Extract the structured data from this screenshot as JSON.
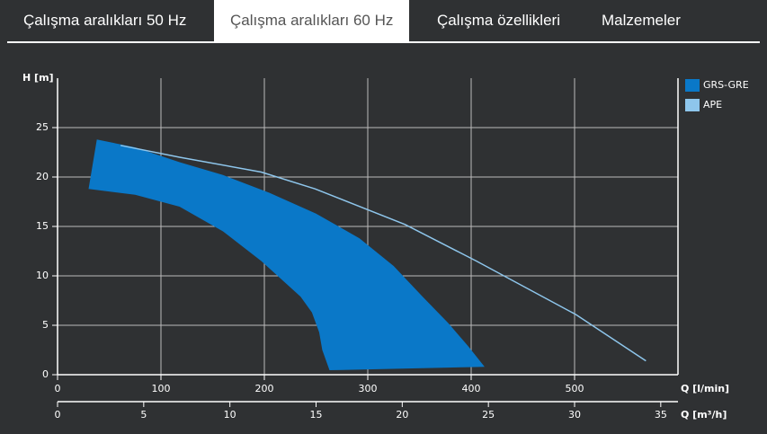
{
  "tabs": [
    {
      "label": "Çalışma aralıkları 50 Hz",
      "active": false
    },
    {
      "label": "Çalışma aralıkları 60 Hz",
      "active": true
    },
    {
      "label": "Çalışma özellikleri",
      "active": false
    },
    {
      "label": "Malzemeler",
      "active": false
    }
  ],
  "chart_data": {
    "type": "area-line",
    "ylabel": "H [m]",
    "xlabel": "Q [l/min]",
    "x2label": "Q [m³/h]",
    "xlim": [
      0,
      600
    ],
    "xticks": [
      0,
      100,
      200,
      300,
      400,
      500
    ],
    "x2lim": [
      0,
      36
    ],
    "x2ticks": [
      0,
      5,
      10,
      15,
      20,
      25,
      30,
      35
    ],
    "ylim": [
      0,
      30
    ],
    "yticks": [
      0,
      5,
      10,
      15,
      20,
      25
    ],
    "grid": true,
    "legend": "right",
    "series": [
      {
        "name": "GRS-GRE",
        "color": "#0a78c8",
        "kind": "region",
        "x": [
          30,
          38,
          75,
          118,
          160,
          205,
          250,
          292,
          325,
          353,
          378,
          397,
          413,
          263,
          256,
          253,
          246,
          235,
          197,
          160,
          118,
          75,
          30
        ],
        "values": [
          18.8,
          23.8,
          23,
          21.5,
          20.2,
          18.4,
          16.3,
          13.8,
          11,
          7.9,
          5.2,
          2.9,
          0.8,
          0.45,
          2.5,
          4.3,
          6.3,
          7.9,
          11.5,
          14.5,
          17,
          18.2,
          18.8
        ]
      },
      {
        "name": "APE",
        "color": "#8ec6ec",
        "kind": "line",
        "x": [
          61,
          118,
          197,
          249,
          336,
          405,
          501,
          569
        ],
        "values": [
          23.2,
          22,
          20.5,
          18.8,
          15.2,
          11.5,
          6.1,
          1.4
        ]
      }
    ]
  }
}
